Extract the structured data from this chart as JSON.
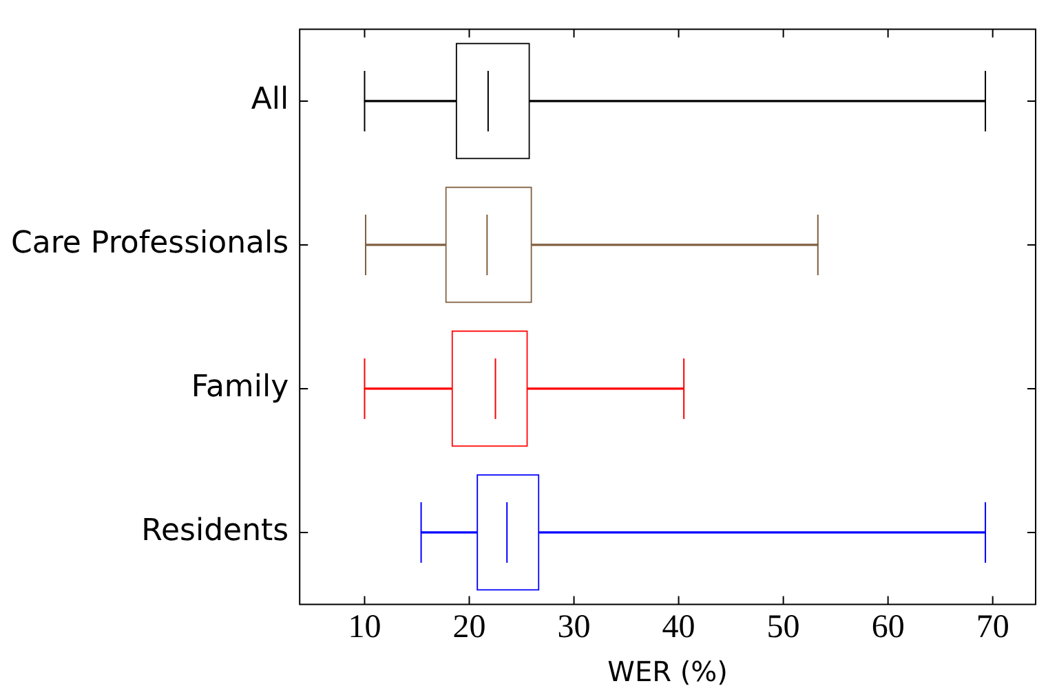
{
  "chart_data": {
    "type": "box",
    "orientation": "horizontal",
    "xlabel": "WER (%)",
    "categories": [
      "All",
      "Care Professionals",
      "Family",
      "Residents"
    ],
    "colors": [
      "#000000",
      "#7f5f3f",
      "#ff0000",
      "#0000ff"
    ],
    "boxes": [
      {
        "low": 10,
        "q1": 18.7,
        "median": 21.8,
        "q3": 25.8,
        "high": 69.3
      },
      {
        "low": 10.1,
        "q1": 17.7,
        "median": 21.7,
        "q3": 26.0,
        "high": 53.3
      },
      {
        "low": 10,
        "q1": 18.3,
        "median": 22.5,
        "q3": 25.6,
        "high": 40.5
      },
      {
        "low": 15.4,
        "q1": 20.7,
        "median": 23.6,
        "q3": 26.7,
        "high": 69.3
      }
    ],
    "xlim": [
      3.8,
      74.1
    ],
    "xticks": [
      10,
      20,
      30,
      40,
      50,
      60,
      70
    ]
  }
}
